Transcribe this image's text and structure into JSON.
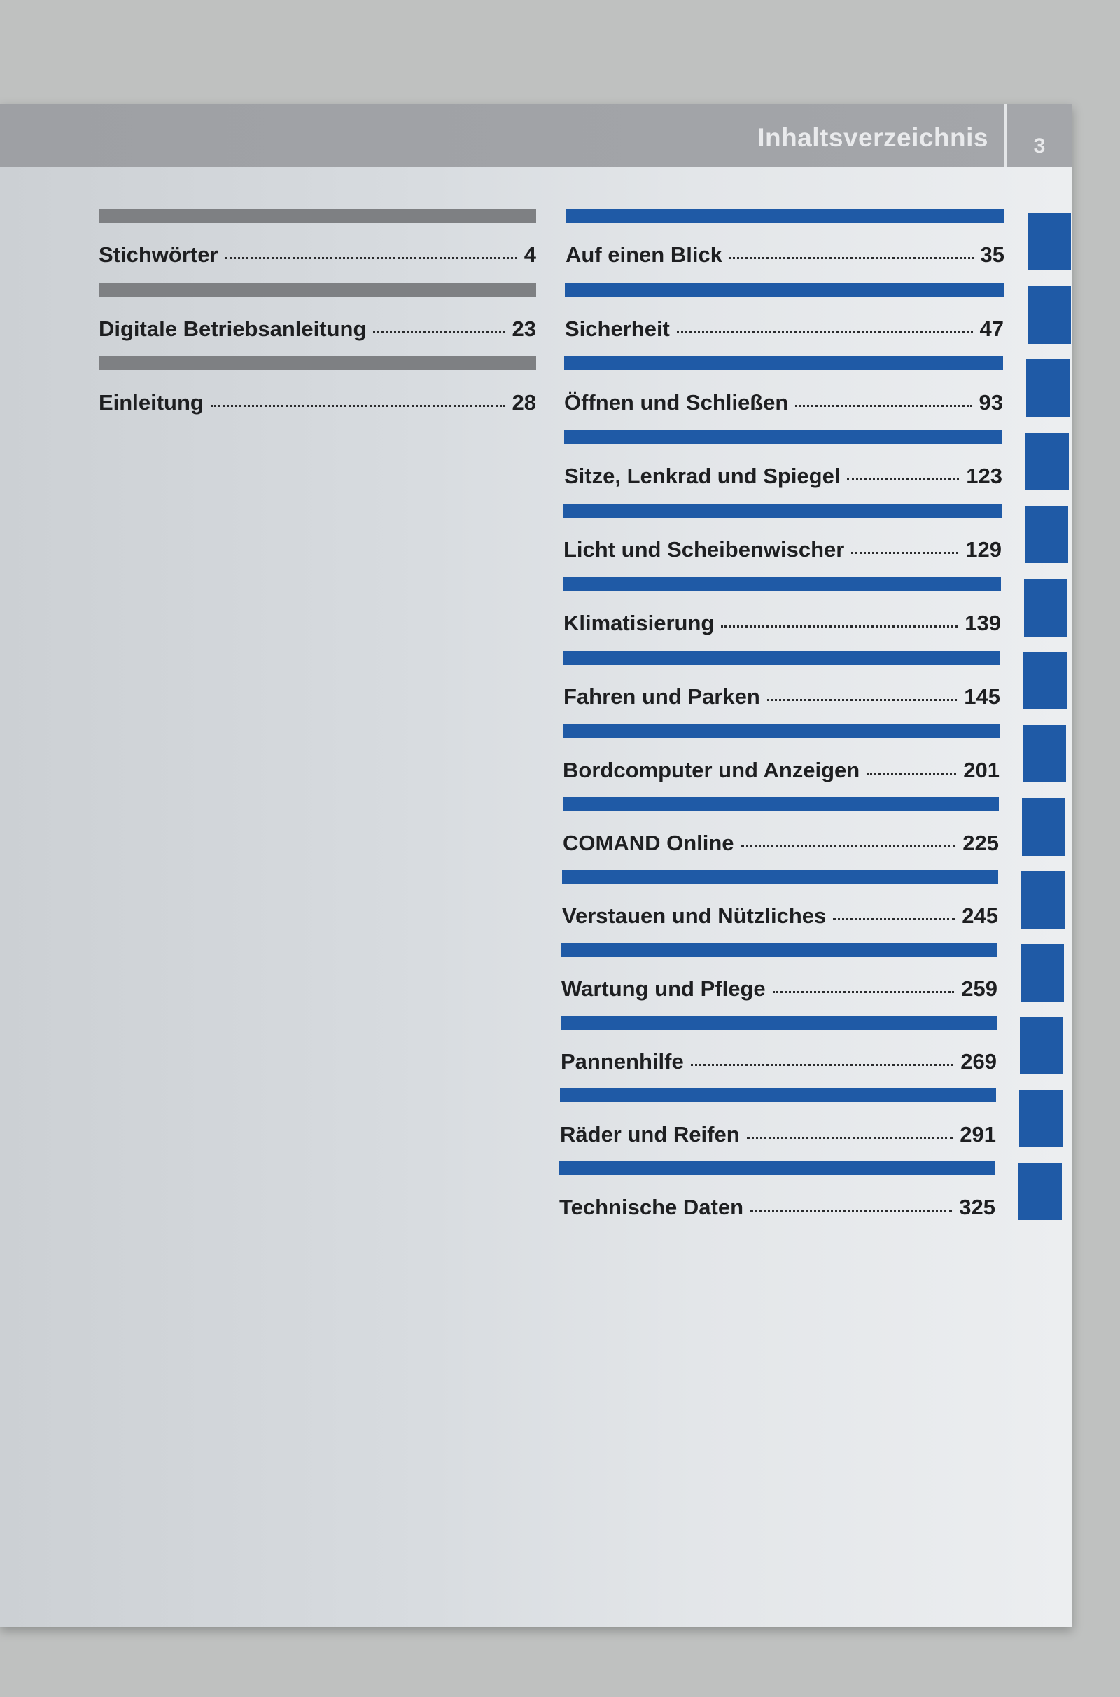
{
  "header": {
    "title": "Inhaltsverzeichnis",
    "page_number": "3",
    "color": "#a2a4a8"
  },
  "colors": {
    "gray_bar": "#7e8083",
    "blue_bar": "#1f5aa6"
  },
  "left_column": [
    {
      "label": "Stichwörter",
      "page": "4"
    },
    {
      "label": "Digitale Betriebsanleitung",
      "page": "23"
    },
    {
      "label": "Einleitung",
      "page": "28"
    }
  ],
  "right_column": [
    {
      "label": "Auf einen Blick",
      "page": "35"
    },
    {
      "label": "Sicherheit",
      "page": "47"
    },
    {
      "label": "Öffnen und Schließen",
      "page": "93"
    },
    {
      "label": "Sitze, Lenkrad und Spiegel",
      "page": "123"
    },
    {
      "label": "Licht und Scheibenwischer",
      "page": "129"
    },
    {
      "label": "Klimatisierung",
      "page": "139"
    },
    {
      "label": "Fahren und Parken",
      "page": "145"
    },
    {
      "label": "Bordcomputer und Anzeigen",
      "page": "201"
    },
    {
      "label": "COMAND Online",
      "page": "225"
    },
    {
      "label": "Verstauen und Nützliches",
      "page": "245"
    },
    {
      "label": "Wartung und Pflege",
      "page": "259"
    },
    {
      "label": "Pannenhilfe",
      "page": "269"
    },
    {
      "label": "Räder und Reifen",
      "page": "291"
    },
    {
      "label": "Technische Daten",
      "page": "325"
    }
  ]
}
